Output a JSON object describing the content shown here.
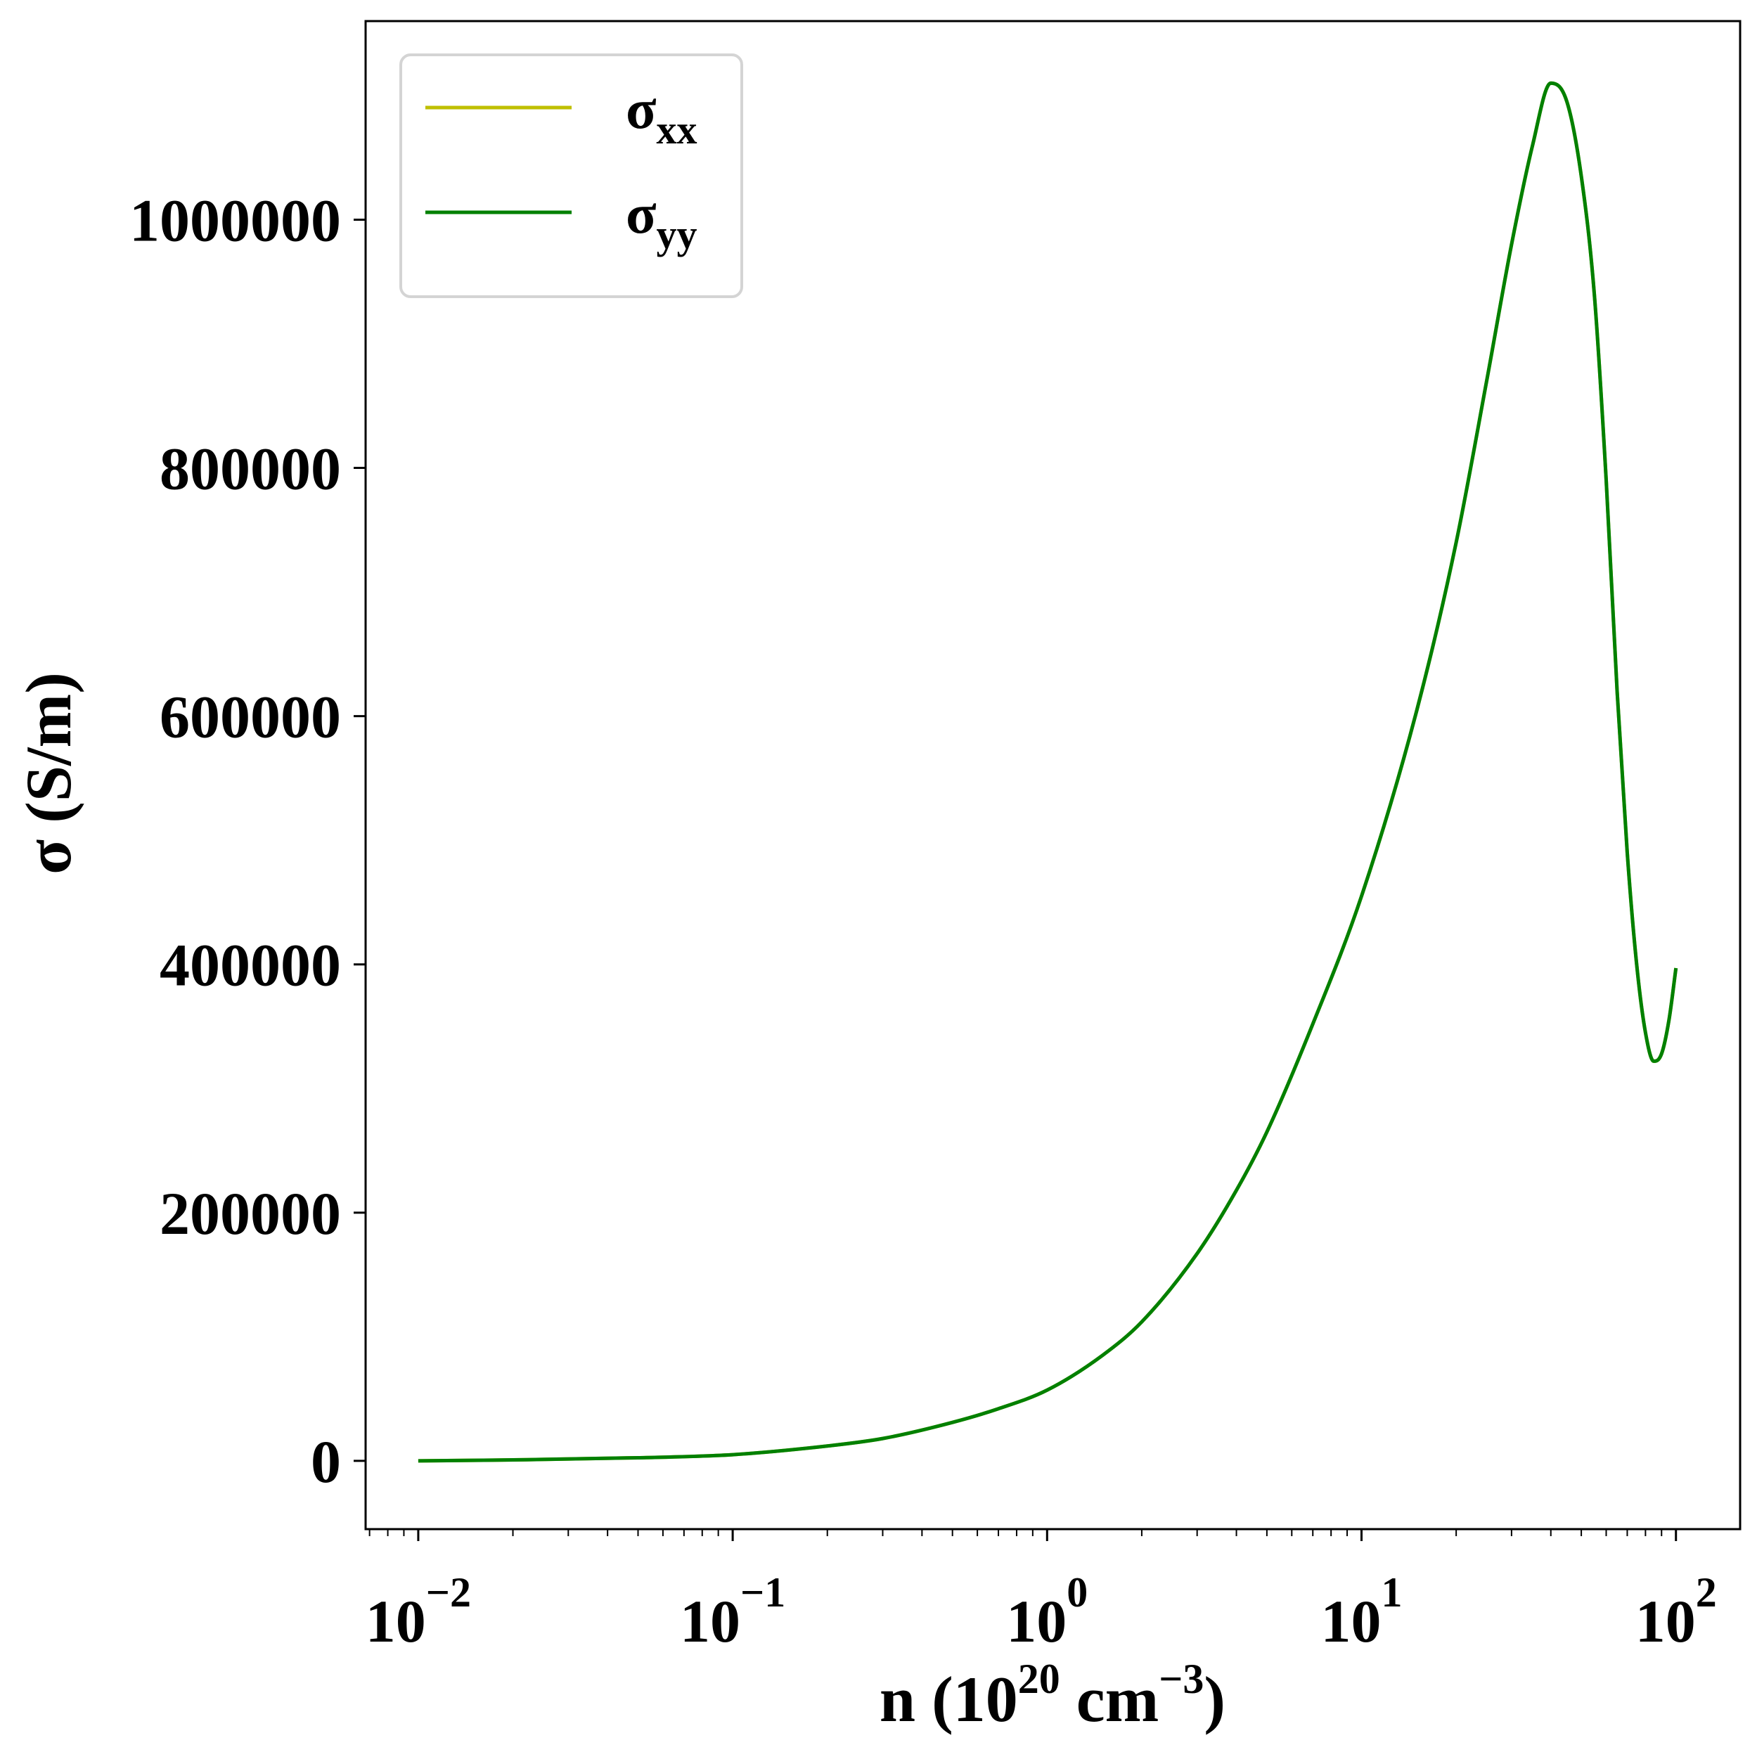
{
  "chart_data": {
    "type": "line",
    "x_scale": "log",
    "xlabel": {
      "base": "n (10",
      "sup1": "20",
      "mid": " cm",
      "sup2": "−3",
      "end": ")"
    },
    "ylabel": "σ (S/m)",
    "xlim": [
      0.0068,
      160
    ],
    "ylim": [
      -55000,
      1160000
    ],
    "x_ticks": [
      {
        "value": 0.01,
        "base": "10",
        "exp": "−2"
      },
      {
        "value": 0.1,
        "base": "10",
        "exp": "−1"
      },
      {
        "value": 1,
        "base": "10",
        "exp": "0"
      },
      {
        "value": 10,
        "base": "10",
        "exp": "1"
      },
      {
        "value": 100,
        "base": "10",
        "exp": "2"
      }
    ],
    "y_ticks": [
      {
        "value": 0,
        "label": "0"
      },
      {
        "value": 200000,
        "label": "200000"
      },
      {
        "value": 400000,
        "label": "400000"
      },
      {
        "value": 600000,
        "label": "600000"
      },
      {
        "value": 800000,
        "label": "800000"
      },
      {
        "value": 1000000,
        "label": "1000000"
      }
    ],
    "legend_position": "top-left",
    "series": [
      {
        "name": "σ",
        "sub": "xx",
        "color": "#bfbf00",
        "x": [
          0.01,
          0.02,
          0.05,
          0.1,
          0.2,
          0.3,
          0.5,
          0.7,
          1,
          1.5,
          2,
          3,
          4,
          5,
          7,
          10,
          15,
          20,
          25,
          30,
          35,
          40,
          45,
          50,
          55,
          60,
          65,
          70,
          75,
          80,
          85,
          90,
          95,
          100
        ],
        "y": [
          0,
          800,
          2500,
          5000,
          12000,
          18000,
          31000,
          42000,
          57000,
          85000,
          112000,
          167000,
          218000,
          265000,
          352000,
          455000,
          605000,
          740000,
          870000,
          980000,
          1060000,
          1110000,
          1095000,
          1035000,
          940000,
          790000,
          620000,
          490000,
          400000,
          345000,
          322000,
          328000,
          355000,
          397000
        ]
      },
      {
        "name": "σ",
        "sub": "yy",
        "color": "#008000",
        "x": [
          0.01,
          0.02,
          0.05,
          0.1,
          0.2,
          0.3,
          0.5,
          0.7,
          1,
          1.5,
          2,
          3,
          4,
          5,
          7,
          10,
          15,
          20,
          25,
          30,
          35,
          40,
          45,
          50,
          55,
          60,
          65,
          70,
          75,
          80,
          85,
          90,
          95,
          100
        ],
        "y": [
          0,
          800,
          2500,
          5000,
          12000,
          18000,
          31000,
          42000,
          57000,
          85000,
          112000,
          167000,
          218000,
          265000,
          352000,
          455000,
          605000,
          740000,
          870000,
          980000,
          1060000,
          1110000,
          1095000,
          1035000,
          940000,
          790000,
          620000,
          490000,
          400000,
          345000,
          322000,
          328000,
          355000,
          397000
        ]
      }
    ]
  }
}
